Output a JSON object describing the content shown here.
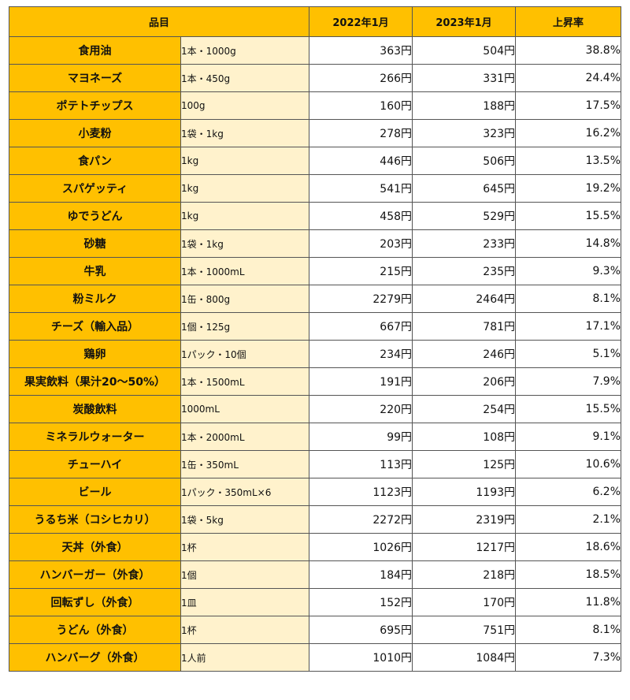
{
  "header": {
    "item": "品目",
    "y2022": "2022年1月",
    "y2023": "2023年1月",
    "rate": "上昇率"
  },
  "rows": [
    {
      "name": "食用油",
      "unit": "1本・1000g",
      "p2022": "363円",
      "p2023": "504円",
      "rate": "38.8%"
    },
    {
      "name": "マヨネーズ",
      "unit": "1本・450g",
      "p2022": "266円",
      "p2023": "331円",
      "rate": "24.4%"
    },
    {
      "name": "ポテトチップス",
      "unit": "100g",
      "p2022": "160円",
      "p2023": "188円",
      "rate": "17.5%"
    },
    {
      "name": "小麦粉",
      "unit": "1袋・1kg",
      "p2022": "278円",
      "p2023": "323円",
      "rate": "16.2%"
    },
    {
      "name": "食パン",
      "unit": "1kg",
      "p2022": "446円",
      "p2023": "506円",
      "rate": "13.5%"
    },
    {
      "name": "スパゲッティ",
      "unit": "1kg",
      "p2022": "541円",
      "p2023": "645円",
      "rate": "19.2%"
    },
    {
      "name": "ゆでうどん",
      "unit": "1kg",
      "p2022": "458円",
      "p2023": "529円",
      "rate": "15.5%"
    },
    {
      "name": "砂糖",
      "unit": "1袋・1kg",
      "p2022": "203円",
      "p2023": "233円",
      "rate": "14.8%"
    },
    {
      "name": "牛乳",
      "unit": "1本・1000mL",
      "p2022": "215円",
      "p2023": "235円",
      "rate": "9.3%"
    },
    {
      "name": "粉ミルク",
      "unit": "1缶・800g",
      "p2022": "2279円",
      "p2023": "2464円",
      "rate": "8.1%"
    },
    {
      "name": "チーズ（輸入品）",
      "unit": "1個・125g",
      "p2022": "667円",
      "p2023": "781円",
      "rate": "17.1%"
    },
    {
      "name": "鶏卵",
      "unit": "1パック・10個",
      "p2022": "234円",
      "p2023": "246円",
      "rate": "5.1%"
    },
    {
      "name": "果実飲料（果汁20～50%）",
      "unit": "1本・1500mL",
      "p2022": "191円",
      "p2023": "206円",
      "rate": "7.9%"
    },
    {
      "name": "炭酸飲料",
      "unit": "1000mL",
      "p2022": "220円",
      "p2023": "254円",
      "rate": "15.5%"
    },
    {
      "name": "ミネラルウォーター",
      "unit": "1本・2000mL",
      "p2022": "99円",
      "p2023": "108円",
      "rate": "9.1%"
    },
    {
      "name": "チューハイ",
      "unit": "1缶・350mL",
      "p2022": "113円",
      "p2023": "125円",
      "rate": "10.6%"
    },
    {
      "name": "ビール",
      "unit": "1パック・350mL×6",
      "p2022": "1123円",
      "p2023": "1193円",
      "rate": "6.2%"
    },
    {
      "name": "うるち米（コシヒカリ）",
      "unit": "1袋・5kg",
      "p2022": "2272円",
      "p2023": "2319円",
      "rate": "2.1%"
    },
    {
      "name": "天丼（外食）",
      "unit": "1杯",
      "p2022": "1026円",
      "p2023": "1217円",
      "rate": "18.6%"
    },
    {
      "name": "ハンバーガー（外食）",
      "unit": "1個",
      "p2022": "184円",
      "p2023": "218円",
      "rate": "18.5%"
    },
    {
      "name": "回転ずし（外食）",
      "unit": "1皿",
      "p2022": "152円",
      "p2023": "170円",
      "rate": "11.8%"
    },
    {
      "name": "うどん（外食）",
      "unit": "1杯",
      "p2022": "695円",
      "p2023": "751円",
      "rate": "8.1%"
    },
    {
      "name": "ハンバーグ（外食）",
      "unit": "1人前",
      "p2022": "1010円",
      "p2023": "1084円",
      "rate": "7.3%"
    }
  ],
  "colors": {
    "header_bg": "#ffc000",
    "name_bg": "#ffc000",
    "unit_bg": "#fff2cc",
    "value_bg": "#ffffff",
    "border": "#555555"
  }
}
